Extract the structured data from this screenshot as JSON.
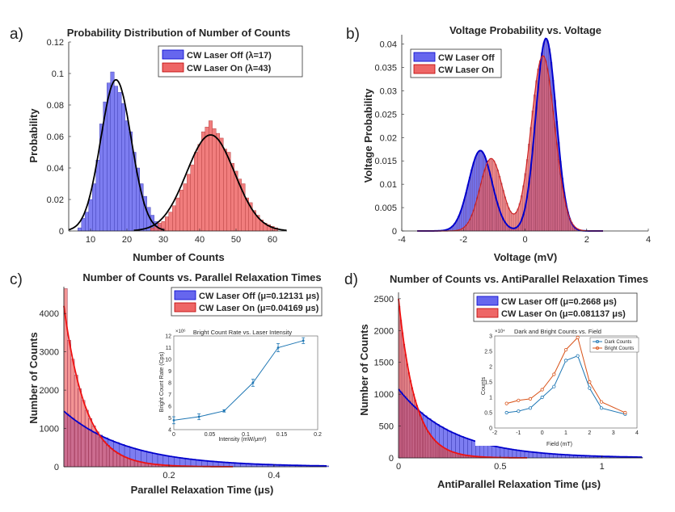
{
  "colors": {
    "blue": "#6666ee",
    "red": "#ee6666",
    "purple": "#993355",
    "fitBlue": "#0000cc",
    "fitRed": "#ee1111",
    "inset1": "#1f77b4",
    "inset2": "#d95319"
  },
  "panels": {
    "a": {
      "label": "a)",
      "title": "Probability Distribution of Number of Counts",
      "xlabel": "Number of Counts",
      "ylabel": "Probability",
      "xticks": [
        "10",
        "20",
        "30",
        "40",
        "50",
        "60"
      ],
      "yticks": [
        "0",
        "0.02",
        "0.04",
        "0.06",
        "0.08",
        "0.1",
        "0.12"
      ],
      "legend": [
        "CW Laser Off (λ=17)",
        "CW Laser On (λ=43)"
      ]
    },
    "b": {
      "label": "b)",
      "title": "Voltage Probability vs. Voltage",
      "xlabel": "Voltage (mV)",
      "ylabel": "Voltage Probability",
      "xticks": [
        "-4",
        "-2",
        "0",
        "2",
        "4"
      ],
      "yticks": [
        "0",
        "0.005",
        "0.01",
        "0.015",
        "0.02",
        "0.025",
        "0.03",
        "0.035",
        "0.04"
      ],
      "legend": [
        "CW Laser Off",
        "CW Laser On"
      ]
    },
    "c": {
      "label": "c)",
      "title": "Number of Counts vs. Parallel Relaxation Times",
      "xlabel": "Parallel Relaxation Time (μs)",
      "ylabel": "Number of Counts",
      "xticks": [
        "0.2",
        "0.4"
      ],
      "yticks": [
        "0",
        "1000",
        "2000",
        "3000",
        "4000"
      ],
      "legend": [
        "CW Laser Off (μ=0.12131 μs)",
        "CW Laser On (μ=0.04169 μs)"
      ],
      "inset": {
        "title": "Bright Count Rate vs. Laser Intensity",
        "multiplier": "×10⁶",
        "xlabel": "Intensity (mW/μm²)",
        "ylabel": "Bright Count Rate (Cps)",
        "xticks": [
          "0",
          "0.05",
          "0.1",
          "0.15",
          "0.2"
        ],
        "yticks": [
          "4",
          "5",
          "6",
          "7",
          "8",
          "9",
          "10",
          "11",
          "12"
        ]
      }
    },
    "d": {
      "label": "d)",
      "title": "Number of Counts vs. AntiParallel Relaxation Times",
      "xlabel": "AntiParallel Relaxation Time (μs)",
      "ylabel": "Number of Counts",
      "xticks": [
        "0",
        "0.5",
        "1"
      ],
      "yticks": [
        "0",
        "500",
        "1000",
        "1500",
        "2000",
        "2500"
      ],
      "legend": [
        "CW Laser Off (μ=0.2668 μs)",
        "CW Laser On (μ=0.081137 μs)"
      ],
      "inset": {
        "title": "Dark and Bright Counts vs. Field",
        "multiplier": "×10⁴",
        "xlabel": "Field (mT)",
        "ylabel": "Counts",
        "xticks": [
          "-2",
          "-1",
          "0",
          "1",
          "2",
          "3",
          "4"
        ],
        "yticks": [
          "0",
          "0.5",
          "1",
          "1.5",
          "2",
          "2.5",
          "3"
        ],
        "legend": [
          "Dark Counts",
          "Bright Counts"
        ]
      }
    }
  },
  "chart_data": [
    {
      "type": "bar",
      "panel": "a",
      "title": "Probability Distribution of Number of Counts",
      "xlabel": "Number of Counts",
      "ylabel": "Probability",
      "xlim": [
        4,
        64
      ],
      "ylim": [
        0,
        0.12
      ],
      "series": [
        {
          "name": "CW Laser Off (λ=17)",
          "kind": "histogram",
          "x": [
            7,
            8,
            9,
            10,
            11,
            12,
            13,
            14,
            15,
            16,
            17,
            18,
            19,
            20,
            21,
            22,
            23,
            24,
            25,
            26,
            27,
            28,
            29,
            30
          ],
          "values": [
            0.002,
            0.008,
            0.012,
            0.02,
            0.03,
            0.045,
            0.068,
            0.082,
            0.094,
            0.101,
            0.092,
            0.088,
            0.081,
            0.07,
            0.063,
            0.05,
            0.04,
            0.03,
            0.022,
            0.015,
            0.01,
            0.006,
            0.004,
            0.002
          ]
        },
        {
          "name": "CW Laser On (λ=43)",
          "kind": "histogram",
          "x": [
            27,
            28,
            29,
            30,
            31,
            32,
            33,
            34,
            35,
            36,
            37,
            38,
            39,
            40,
            41,
            42,
            43,
            44,
            45,
            46,
            47,
            48,
            49,
            50,
            51,
            52,
            53,
            54,
            55,
            56,
            57,
            58,
            59,
            60,
            61
          ],
          "values": [
            0.002,
            0.003,
            0.005,
            0.006,
            0.009,
            0.012,
            0.016,
            0.021,
            0.026,
            0.03,
            0.036,
            0.042,
            0.05,
            0.055,
            0.063,
            0.066,
            0.07,
            0.065,
            0.062,
            0.059,
            0.052,
            0.05,
            0.043,
            0.038,
            0.033,
            0.03,
            0.021,
            0.018,
            0.013,
            0.01,
            0.007,
            0.005,
            0.004,
            0.003,
            0.002
          ]
        },
        {
          "name": "Fit λ=17",
          "kind": "fit",
          "model": "normal",
          "mean": 17,
          "sd": 4.2,
          "peak": 0.096
        },
        {
          "name": "Fit λ=43",
          "kind": "fit",
          "model": "normal",
          "mean": 43,
          "sd": 6.6,
          "peak": 0.061
        }
      ]
    },
    {
      "type": "area",
      "panel": "b",
      "title": "Voltage Probability vs. Voltage",
      "xlabel": "Voltage (mV)",
      "ylabel": "Voltage Probability",
      "xlim": [
        -4,
        4
      ],
      "ylim": [
        0,
        0.042
      ],
      "series": [
        {
          "name": "CW Laser Off",
          "model": "two-gaussian",
          "components": [
            {
              "mean": -1.45,
              "sd": 0.38,
              "peak": 0.0172
            },
            {
              "mean": 0.68,
              "sd": 0.33,
              "peak": 0.0412
            }
          ]
        },
        {
          "name": "CW Laser On",
          "model": "two-gaussian",
          "components": [
            {
              "mean": -1.1,
              "sd": 0.36,
              "peak": 0.0155
            },
            {
              "mean": 0.58,
              "sd": 0.38,
              "peak": 0.0375
            }
          ]
        }
      ]
    },
    {
      "type": "bar",
      "panel": "c",
      "title": "Number of Counts vs. Parallel Relaxation Times",
      "xlabel": "Parallel Relaxation Time (μs)",
      "ylabel": "Number of Counts",
      "xlim": [
        0,
        0.5
      ],
      "ylim": [
        0,
        4700
      ],
      "series": [
        {
          "name": "CW Laser Off (μ=0.12131 μs)",
          "kind": "histogram",
          "model": "exponential",
          "mean": 0.12131,
          "amplitude": 1450
        },
        {
          "name": "CW Laser On (μ=0.04169 μs)",
          "kind": "histogram",
          "model": "exponential",
          "mean": 0.04169,
          "amplitude": 4200,
          "first_bar": 4650
        }
      ],
      "inset": {
        "type": "line",
        "title": "Bright Count Rate vs. Laser Intensity",
        "xlabel": "Intensity (mW/μm²)",
        "ylabel": "Bright Count Rate (Cps)",
        "y_multiplier": 1000000,
        "xlim": [
          0,
          0.2
        ],
        "ylim": [
          4,
          12
        ],
        "x": [
          0,
          0.035,
          0.07,
          0.11,
          0.145,
          0.18
        ],
        "values": [
          4.8,
          5.1,
          5.6,
          8.0,
          11.0,
          11.6
        ],
        "errors": [
          0.3,
          0.25,
          0.1,
          0.3,
          0.35,
          0.25
        ]
      }
    },
    {
      "type": "bar",
      "panel": "d",
      "title": "Number of Counts vs. AntiParallel Relaxation Times",
      "xlabel": "AntiParallel Relaxation Time (μs)",
      "ylabel": "Number of Counts",
      "xlim": [
        0,
        1.2
      ],
      "ylim": [
        0,
        2600
      ],
      "series": [
        {
          "name": "CW Laser Off (μ=0.2668 μs)",
          "kind": "histogram",
          "model": "exponential",
          "mean": 0.2668,
          "amplitude": 1080
        },
        {
          "name": "CW Laser On (μ=0.081137 μs)",
          "kind": "histogram",
          "model": "exponential",
          "mean": 0.081137,
          "amplitude": 2500
        }
      ],
      "inset": {
        "type": "line",
        "title": "Dark and Bright Counts vs. Field",
        "xlabel": "Field (mT)",
        "ylabel": "Counts",
        "y_multiplier": 10000,
        "xlim": [
          -2,
          4
        ],
        "ylim": [
          0,
          3
        ],
        "x": [
          -1.5,
          -1,
          -0.5,
          0,
          0.5,
          1,
          1.5,
          2,
          2.5,
          3.5
        ],
        "series": [
          {
            "name": "Dark Counts",
            "values": [
              0.5,
              0.55,
              0.65,
              1.0,
              1.35,
              2.2,
              2.35,
              1.3,
              0.65,
              0.45
            ]
          },
          {
            "name": "Bright Counts",
            "values": [
              0.8,
              0.9,
              0.95,
              1.25,
              1.75,
              2.55,
              2.95,
              1.5,
              0.85,
              0.5
            ]
          }
        ]
      }
    }
  ]
}
